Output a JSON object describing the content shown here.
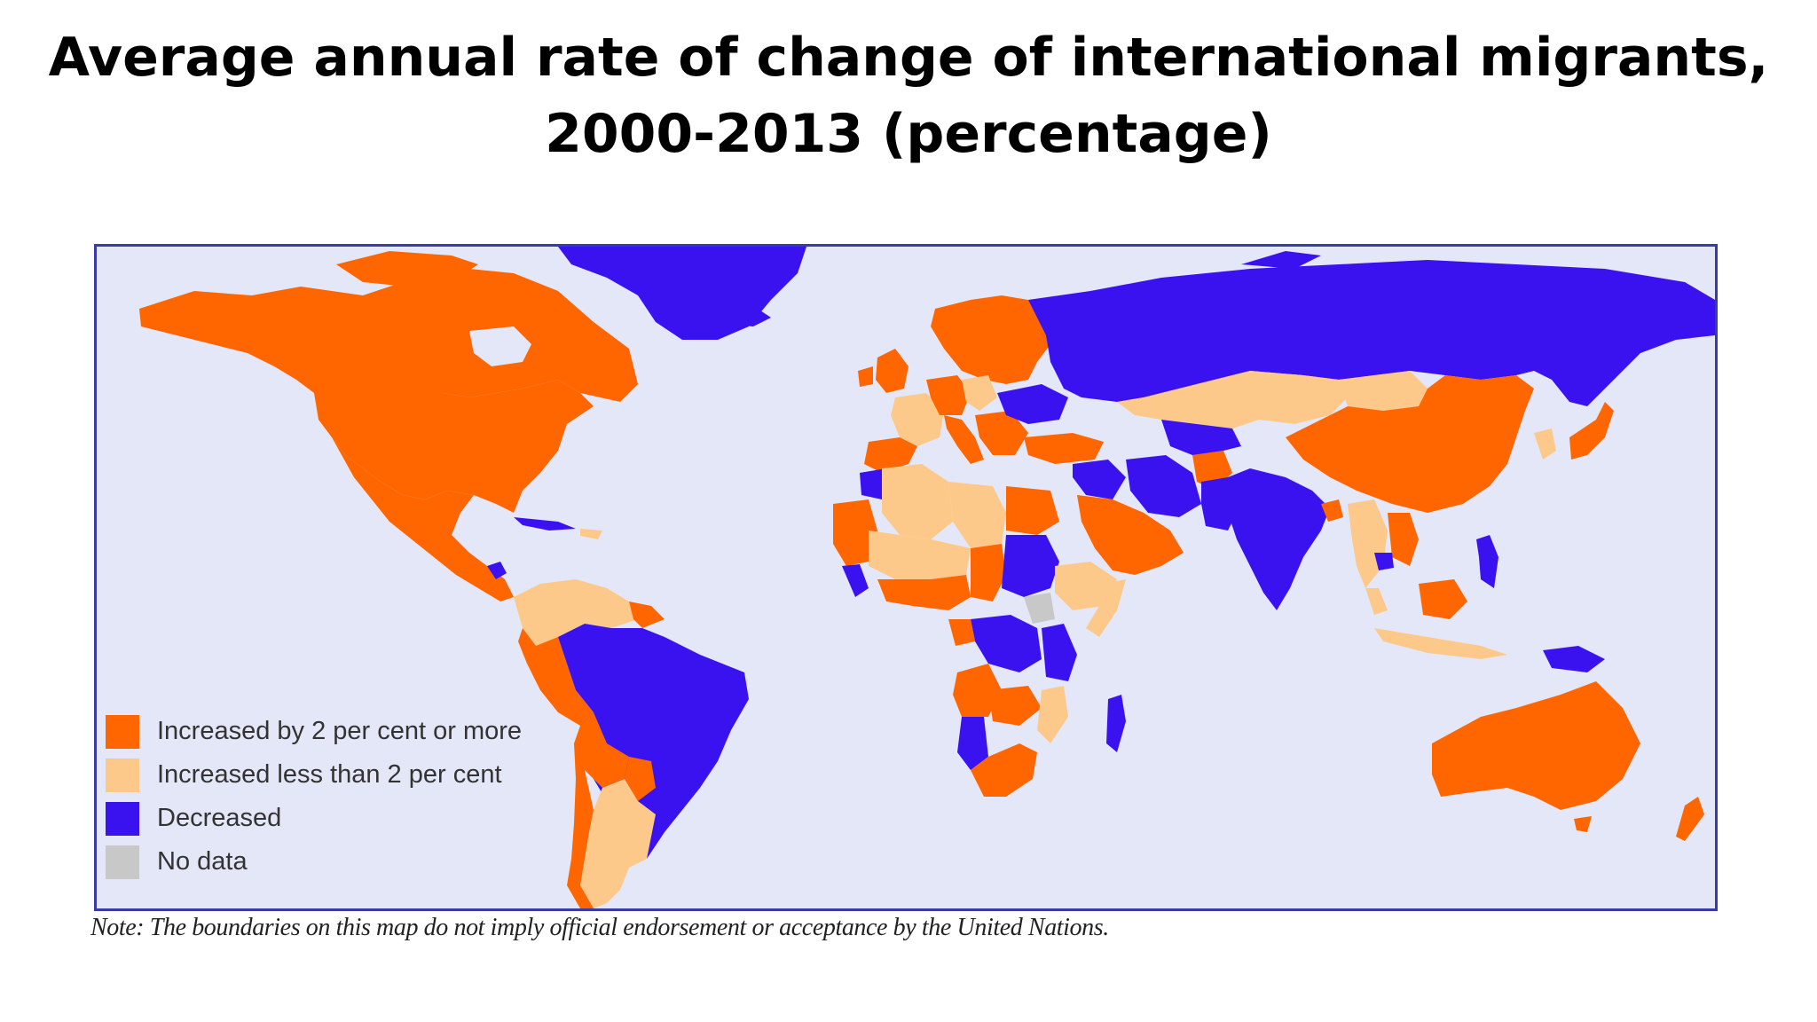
{
  "title": {
    "line1": "Average annual rate of change of international migrants,",
    "line2": "2000-2013 (percentage)"
  },
  "colors": {
    "increased_2_or_more": "#ff6600",
    "increased_less_than_2": "#fdc98a",
    "decreased": "#3a12f0",
    "no_data": "#c8c8c8",
    "ocean": "#e4e7f7",
    "frame": "#3a3aa8"
  },
  "legend": [
    {
      "label": "Increased by 2 per cent or more",
      "color": "#ff6600"
    },
    {
      "label": "Increased less than 2 per cent",
      "color": "#fdc98a"
    },
    {
      "label": "Decreased",
      "color": "#3a12f0"
    },
    {
      "label": "No data",
      "color": "#c8c8c8"
    }
  ],
  "regions": [
    {
      "name": "Canada",
      "category": "increased_2_or_more"
    },
    {
      "name": "United States",
      "category": "increased_2_or_more"
    },
    {
      "name": "Mexico",
      "category": "increased_2_or_more"
    },
    {
      "name": "Greenland",
      "category": "decreased"
    },
    {
      "name": "Brazil",
      "category": "decreased"
    },
    {
      "name": "Argentina",
      "category": "increased_less_than_2"
    },
    {
      "name": "Russia",
      "category": "decreased"
    },
    {
      "name": "Kazakhstan",
      "category": "increased_less_than_2"
    },
    {
      "name": "China",
      "category": "increased_2_or_more"
    },
    {
      "name": "India",
      "category": "decreased"
    },
    {
      "name": "Saudi Arabia",
      "category": "increased_2_or_more"
    },
    {
      "name": "Algeria",
      "category": "increased_less_than_2"
    },
    {
      "name": "Sudan",
      "category": "decreased"
    },
    {
      "name": "Somalia",
      "category": "no_data"
    },
    {
      "name": "Australia",
      "category": "increased_2_or_more"
    },
    {
      "name": "Madagascar",
      "category": "decreased"
    },
    {
      "name": "Scandinavia",
      "category": "increased_2_or_more"
    },
    {
      "name": "Japan",
      "category": "increased_2_or_more"
    }
  ],
  "note": "Note: The boundaries on this map do not imply official endorsement or acceptance by the United Nations."
}
